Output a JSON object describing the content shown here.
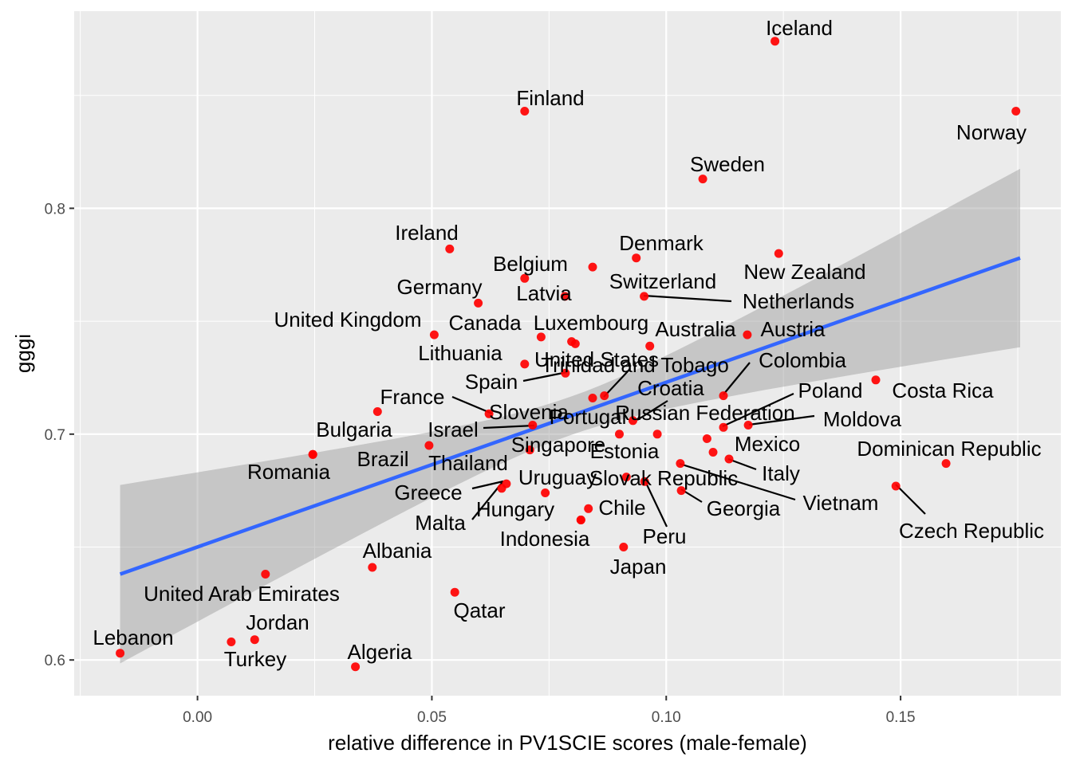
{
  "chart_data": {
    "type": "scatter",
    "xlabel": "relative difference in PV1SCIE scores (male-female)",
    "ylabel": "gggi",
    "xlim": [
      -0.026,
      0.183
    ],
    "ylim": [
      0.585,
      0.88
    ],
    "x_ticks": [
      0.0,
      0.05,
      0.1,
      0.15
    ],
    "x_tick_labels": [
      "0.00",
      "0.05",
      "0.10",
      "0.15"
    ],
    "y_ticks": [
      0.6,
      0.7,
      0.8
    ],
    "y_tick_labels": [
      "0.6",
      "0.7",
      "0.8"
    ],
    "grid": true,
    "point_color": "#ff0000",
    "fit_line_color": "#3366ff",
    "ribbon_color": "#bdbdbd",
    "panel_background": "#ebebeb",
    "trend": {
      "type": "linear",
      "x": [
        -0.0165,
        0.1755
      ],
      "y": [
        0.638,
        0.778
      ],
      "ci_lower": [
        0.598,
        0.741
      ],
      "ci_upper": [
        0.677,
        0.815
      ]
    },
    "points": [
      {
        "label": "Iceland",
        "x": 0.1232,
        "y": 0.874
      },
      {
        "label": "Finland",
        "x": 0.0698,
        "y": 0.843
      },
      {
        "label": "Norway",
        "x": 0.1746,
        "y": 0.843
      },
      {
        "label": "Sweden",
        "x": 0.1078,
        "y": 0.813
      },
      {
        "label": "Ireland",
        "x": 0.0538,
        "y": 0.782
      },
      {
        "label": "Denmark",
        "x": 0.0936,
        "y": 0.778
      },
      {
        "label": "New Zealand",
        "x": 0.124,
        "y": 0.78
      },
      {
        "label": "Belgium",
        "x": 0.0843,
        "y": 0.774
      },
      {
        "label": "Germany",
        "x": 0.0599,
        "y": 0.758
      },
      {
        "label": "Latvia",
        "x": 0.0698,
        "y": 0.769
      },
      {
        "label": "Switzerland",
        "x": 0.0784,
        "y": 0.761
      },
      {
        "label": "Netherlands",
        "x": 0.0953,
        "y": 0.761
      },
      {
        "label": "United Kingdom",
        "x": 0.0505,
        "y": 0.744
      },
      {
        "label": "Canada",
        "x": 0.0733,
        "y": 0.743
      },
      {
        "label": "Luxembourg",
        "x": 0.0806,
        "y": 0.74
      },
      {
        "label": "Australia",
        "x": 0.0965,
        "y": 0.739
      },
      {
        "label": "Austria",
        "x": 0.1173,
        "y": 0.744
      },
      {
        "label": "Lithuania",
        "x": 0.0698,
        "y": 0.731
      },
      {
        "label": "United States",
        "x": 0.0798,
        "y": 0.741
      },
      {
        "label": "Trinidad and Tobago",
        "x": 0.0868,
        "y": 0.717
      },
      {
        "label": "Spain",
        "x": 0.0785,
        "y": 0.727
      },
      {
        "label": "Colombia",
        "x": 0.1122,
        "y": 0.717
      },
      {
        "label": "Croatia",
        "x": 0.0843,
        "y": 0.716
      },
      {
        "label": "France",
        "x": 0.0384,
        "y": 0.71
      },
      {
        "label": "Slovenia",
        "x": 0.0622,
        "y": 0.709
      },
      {
        "label": "Costa Rica",
        "x": 0.1447,
        "y": 0.724
      },
      {
        "label": "Poland",
        "x": 0.1122,
        "y": 0.703
      },
      {
        "label": "Portugal",
        "x": 0.0715,
        "y": 0.704
      },
      {
        "label": "Russian Federation",
        "x": 0.0929,
        "y": 0.706
      },
      {
        "label": "Moldova",
        "x": 0.1175,
        "y": 0.704
      },
      {
        "label": "Israel",
        "x": 0.0494,
        "y": 0.695
      },
      {
        "label": "Bulgaria",
        "x": 0.0246,
        "y": 0.691
      },
      {
        "label": "Brazil",
        "x": 0.0709,
        "y": 0.693
      },
      {
        "label": "Singapore",
        "x": 0.09,
        "y": 0.7
      },
      {
        "label": "Mexico",
        "x": 0.1087,
        "y": 0.698
      },
      {
        "label": "Thailand",
        "x": 0.0981,
        "y": 0.7
      },
      {
        "label": "Estonia",
        "x": 0.11,
        "y": 0.692
      },
      {
        "label": "Dominican Republic",
        "x": 0.1597,
        "y": 0.687
      },
      {
        "label": "Italy",
        "x": 0.1134,
        "y": 0.689
      },
      {
        "label": "Romania",
        "x": 0.0246,
        "y": 0.691
      },
      {
        "label": "Uruguay",
        "x": 0.0742,
        "y": 0.674
      },
      {
        "label": "Slovak Republic",
        "x": 0.0915,
        "y": 0.681
      },
      {
        "label": "Vietnam",
        "x": 0.103,
        "y": 0.687
      },
      {
        "label": "Greece",
        "x": 0.0659,
        "y": 0.678
      },
      {
        "label": "Czech Republic",
        "x": 0.149,
        "y": 0.677
      },
      {
        "label": "Malta",
        "x": 0.0649,
        "y": 0.676
      },
      {
        "label": "Hungary",
        "x": 0.0818,
        "y": 0.662
      },
      {
        "label": "Chile",
        "x": 0.0834,
        "y": 0.667
      },
      {
        "label": "Georgia",
        "x": 0.1032,
        "y": 0.675
      },
      {
        "label": "Peru",
        "x": 0.0954,
        "y": 0.679
      },
      {
        "label": "Indonesia",
        "x": 0.0818,
        "y": 0.662
      },
      {
        "label": "Japan",
        "x": 0.0909,
        "y": 0.65
      },
      {
        "label": "Albania",
        "x": 0.0373,
        "y": 0.641
      },
      {
        "label": "United Arab Emirates",
        "x": 0.0145,
        "y": 0.638
      },
      {
        "label": "Qatar",
        "x": 0.0549,
        "y": 0.63
      },
      {
        "label": "Jordan",
        "x": 0.0122,
        "y": 0.609
      },
      {
        "label": "Turkey",
        "x": 0.0072,
        "y": 0.608
      },
      {
        "label": "Lebanon",
        "x": -0.0165,
        "y": 0.603
      },
      {
        "label": "Algeria",
        "x": 0.0337,
        "y": 0.597
      }
    ]
  }
}
